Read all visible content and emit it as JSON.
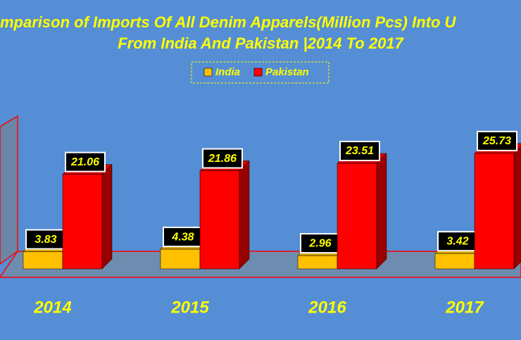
{
  "chart_data": {
    "type": "bar3d",
    "title": "mparison of Imports Of All Denim Apparels(Million Pcs) Into U",
    "subtitle": "From India And Pakistan |2014 To 2017",
    "categories": [
      "2014",
      "2015",
      "2016",
      "2017"
    ],
    "series": [
      {
        "name": "India",
        "color": "#ffc000",
        "values": [
          3.83,
          4.38,
          2.96,
          3.42
        ]
      },
      {
        "name": "Pakistan",
        "color": "#ff0000",
        "values": [
          21.06,
          21.86,
          23.51,
          25.73
        ]
      }
    ]
  }
}
